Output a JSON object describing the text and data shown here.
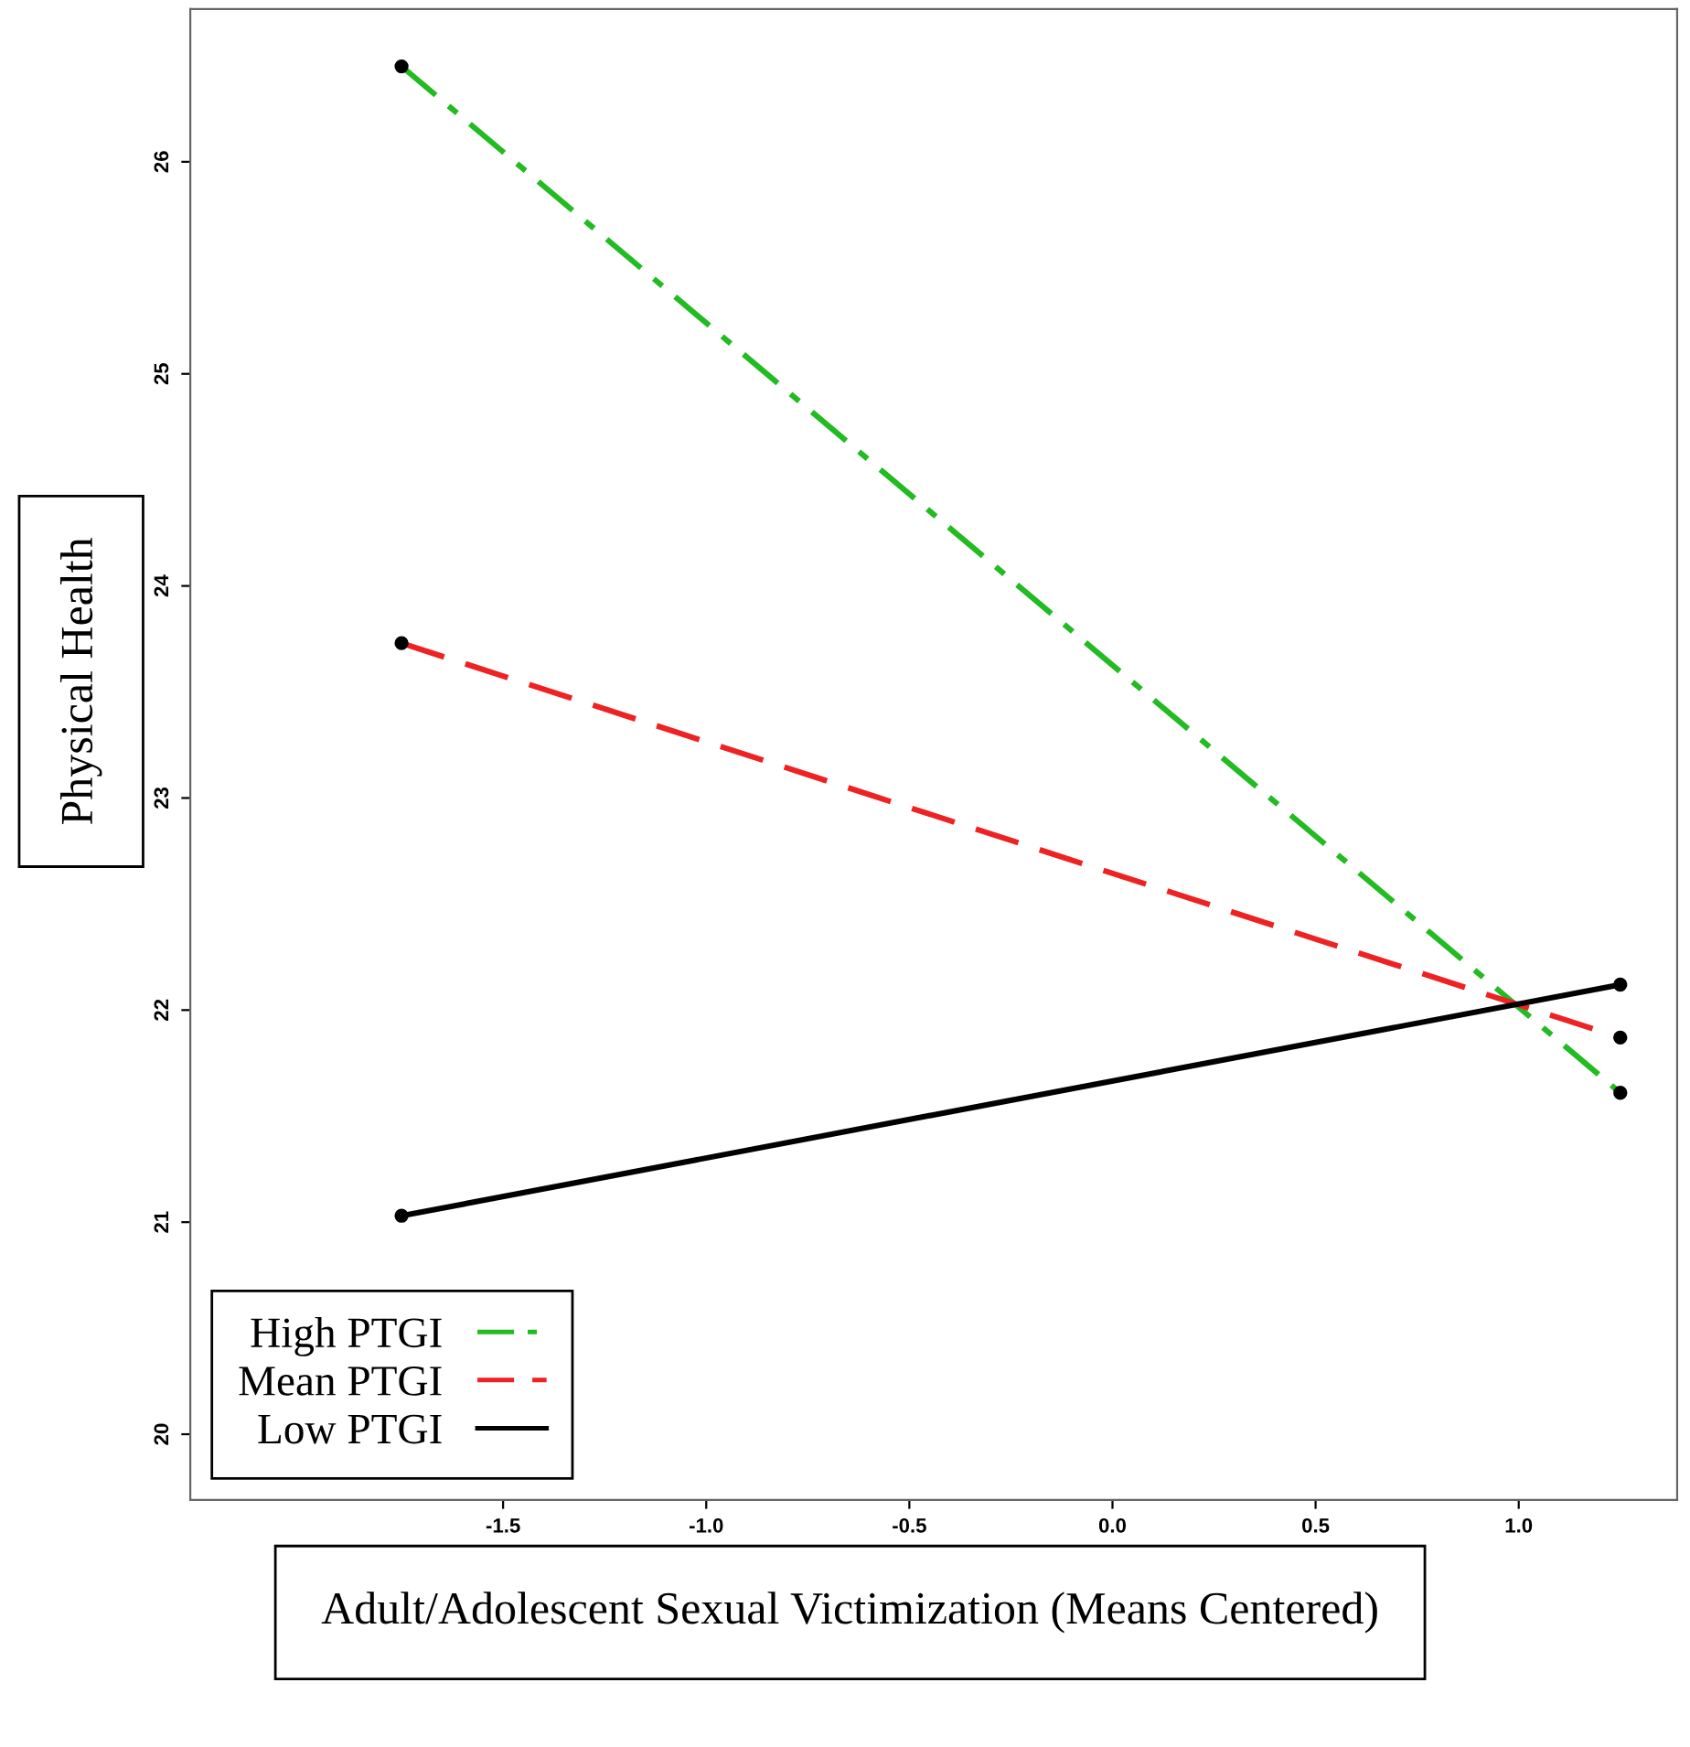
{
  "chart_data": {
    "type": "line",
    "xlabel": "Adult/Adolescent Sexual Victimization (Means Centered)",
    "ylabel": "Physical Health",
    "x": [
      -1.75,
      1.25
    ],
    "series": [
      {
        "name": "High PTGI",
        "color": "#22bb22",
        "line_style": "dashdot",
        "values": [
          26.45,
          21.61
        ]
      },
      {
        "name": "Mean PTGI",
        "color": "#ee2222",
        "line_style": "dashed",
        "values": [
          23.73,
          21.87
        ]
      },
      {
        "name": "Low PTGI",
        "color": "#000000",
        "line_style": "solid",
        "values": [
          21.03,
          22.12
        ]
      }
    ],
    "marker": "circle",
    "xlim": [
      -2.27,
      1.39
    ],
    "ylim": [
      19.69,
      26.72
    ],
    "xticks": [
      {
        "value": -1.5,
        "label": "-1.5"
      },
      {
        "value": -1.0,
        "label": "-1.0"
      },
      {
        "value": -0.5,
        "label": "-0.5"
      },
      {
        "value": 0.0,
        "label": "0.0"
      },
      {
        "value": 0.5,
        "label": "0.5"
      },
      {
        "value": 1.0,
        "label": "1.0"
      }
    ],
    "yticks": [
      20,
      21,
      22,
      23,
      24,
      25,
      26
    ],
    "grid": false,
    "legend": "bottom left"
  }
}
